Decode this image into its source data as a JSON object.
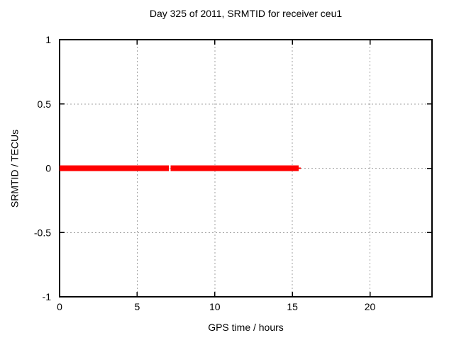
{
  "chart_data": {
    "type": "line",
    "title": "Day 325 of 2011, SRMTID for receiver ceu1",
    "xlabel": "GPS time / hours",
    "ylabel": "SRMTID / TECUs",
    "xlim": [
      0,
      24
    ],
    "ylim": [
      -1,
      1
    ],
    "xticks": {
      "values": [
        0,
        5,
        10,
        15,
        20
      ],
      "labels": [
        "0",
        "5",
        "10",
        "15",
        "20"
      ]
    },
    "yticks": {
      "values": [
        -1,
        -0.5,
        0,
        0.5,
        1
      ],
      "labels": [
        "-1",
        "-0.5",
        "0",
        "0.5",
        "1"
      ]
    },
    "grid": true,
    "legend": "none",
    "series": [
      {
        "name": "SRMTID",
        "color": "#ff0000",
        "y_value": 0,
        "segments": [
          {
            "x_start": 0.0,
            "x_end": 7.05,
            "y": 0,
            "stroke_px": 8
          },
          {
            "x_start": 7.15,
            "x_end": 15.4,
            "y": 0,
            "stroke_px": 8
          },
          {
            "x_start": 15.4,
            "x_end": 15.55,
            "y": 0,
            "stroke_px": 2
          }
        ]
      }
    ],
    "colors": {
      "axis": "#000000",
      "grid": "#a0a0a0",
      "text": "#000000",
      "background": "#ffffff",
      "series_red": "#ff0000"
    }
  }
}
